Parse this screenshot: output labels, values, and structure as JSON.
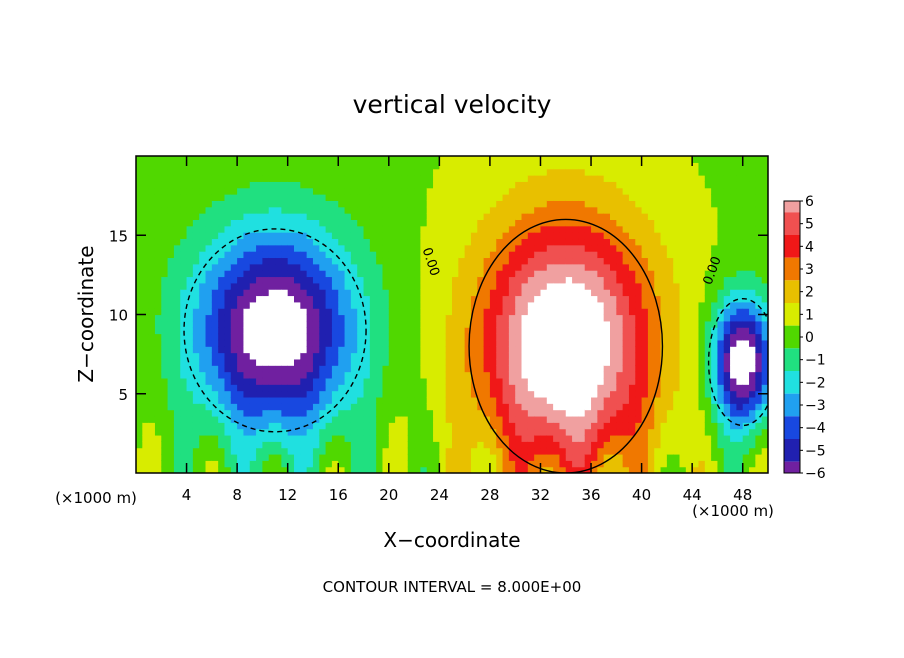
{
  "chart_data": {
    "type": "heatmap",
    "title": "vertical velocity",
    "xlabel": "X−coordinate",
    "ylabel": "Z−coordinate",
    "x_unit": "(×1000 m)",
    "z_unit": "(×1000 m)",
    "xlim": [
      0,
      50
    ],
    "ylim": [
      0,
      20
    ],
    "x_ticks": [
      4,
      8,
      12,
      16,
      20,
      24,
      28,
      32,
      36,
      40,
      44,
      48
    ],
    "x_tick_labels": [
      "4",
      "8",
      "12",
      "16",
      "20",
      "24",
      "28",
      "32",
      "36",
      "40",
      "44",
      "48"
    ],
    "y_ticks": [
      5,
      10,
      15
    ],
    "y_tick_labels": [
      "5",
      "10",
      "15"
    ],
    "colorbar": {
      "values": [
        6,
        5,
        4,
        3,
        2,
        1,
        0,
        -1,
        -2,
        -3,
        -4,
        -5,
        -6
      ],
      "labels": [
        "6",
        "5",
        "4",
        "3",
        "2",
        "1",
        "0",
        "−1",
        "−2",
        "−3",
        "−4",
        "−5",
        "−6"
      ],
      "colors": [
        "#f0a0a0",
        "#f05050",
        "#f01818",
        "#f07800",
        "#e8c000",
        "#d8ec00",
        "#50d800",
        "#20e080",
        "#20e0e0",
        "#20a0f0",
        "#1848e0",
        "#2020b0",
        "#7020a0"
      ]
    },
    "contour_labels": [
      "0.00",
      "0.00"
    ],
    "contour_interval_text": "CONTOUR INTERVAL = 8.000E+00",
    "features": [
      {
        "kind": "updraft",
        "x": 34,
        "z": 8,
        "rx": 8.5,
        "rz": 10,
        "peak": 6
      },
      {
        "kind": "downdraft",
        "x": 11,
        "z": 9,
        "rx": 8,
        "rz": 8,
        "peak": -6
      },
      {
        "kind": "downdraft",
        "x": 48,
        "z": 7,
        "rx": 3,
        "rz": 5,
        "peak": -6
      }
    ]
  }
}
